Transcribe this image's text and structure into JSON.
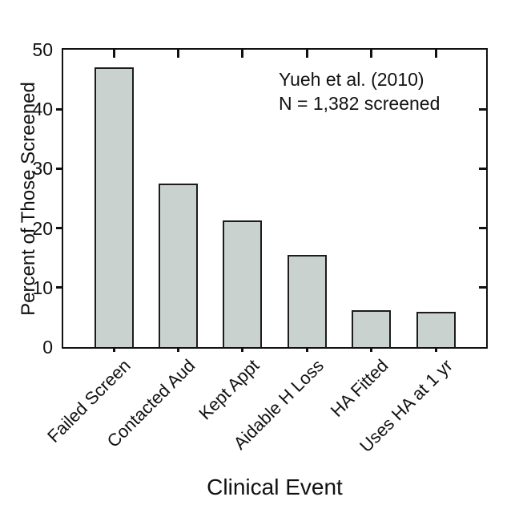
{
  "figure": {
    "y_axis_title": "Percent of Those Screened",
    "x_axis_title": "Clinical Event",
    "annotation_line1": "Yueh et al. (2010)",
    "annotation_line2": "N = 1,382 screened"
  },
  "chart_data": {
    "type": "bar",
    "categories": [
      "Failed Screen",
      "Contacted Aud",
      "Kept Appt",
      "Aidable H Loss",
      "HA Fitted",
      "Uses HA at 1 yr"
    ],
    "values": [
      47,
      27.5,
      21.3,
      15.5,
      6.2,
      5.9
    ],
    "title": "",
    "xlabel": "Clinical Event",
    "ylabel": "Percent of Those Screened",
    "ylim": [
      0,
      50
    ],
    "yticks": [
      0,
      10,
      20,
      30,
      40,
      50
    ],
    "xtick_rotation_deg": 45,
    "annotation": [
      "Yueh et al. (2010)",
      "N = 1,382 screened"
    ],
    "annotation_position": "upper-right",
    "grid": false,
    "legend": null,
    "bar_fill_color": "#cad2cf",
    "bar_edge_color": "#1c1c1c",
    "axis_color": "#111111",
    "background_color": "#ffffff"
  }
}
